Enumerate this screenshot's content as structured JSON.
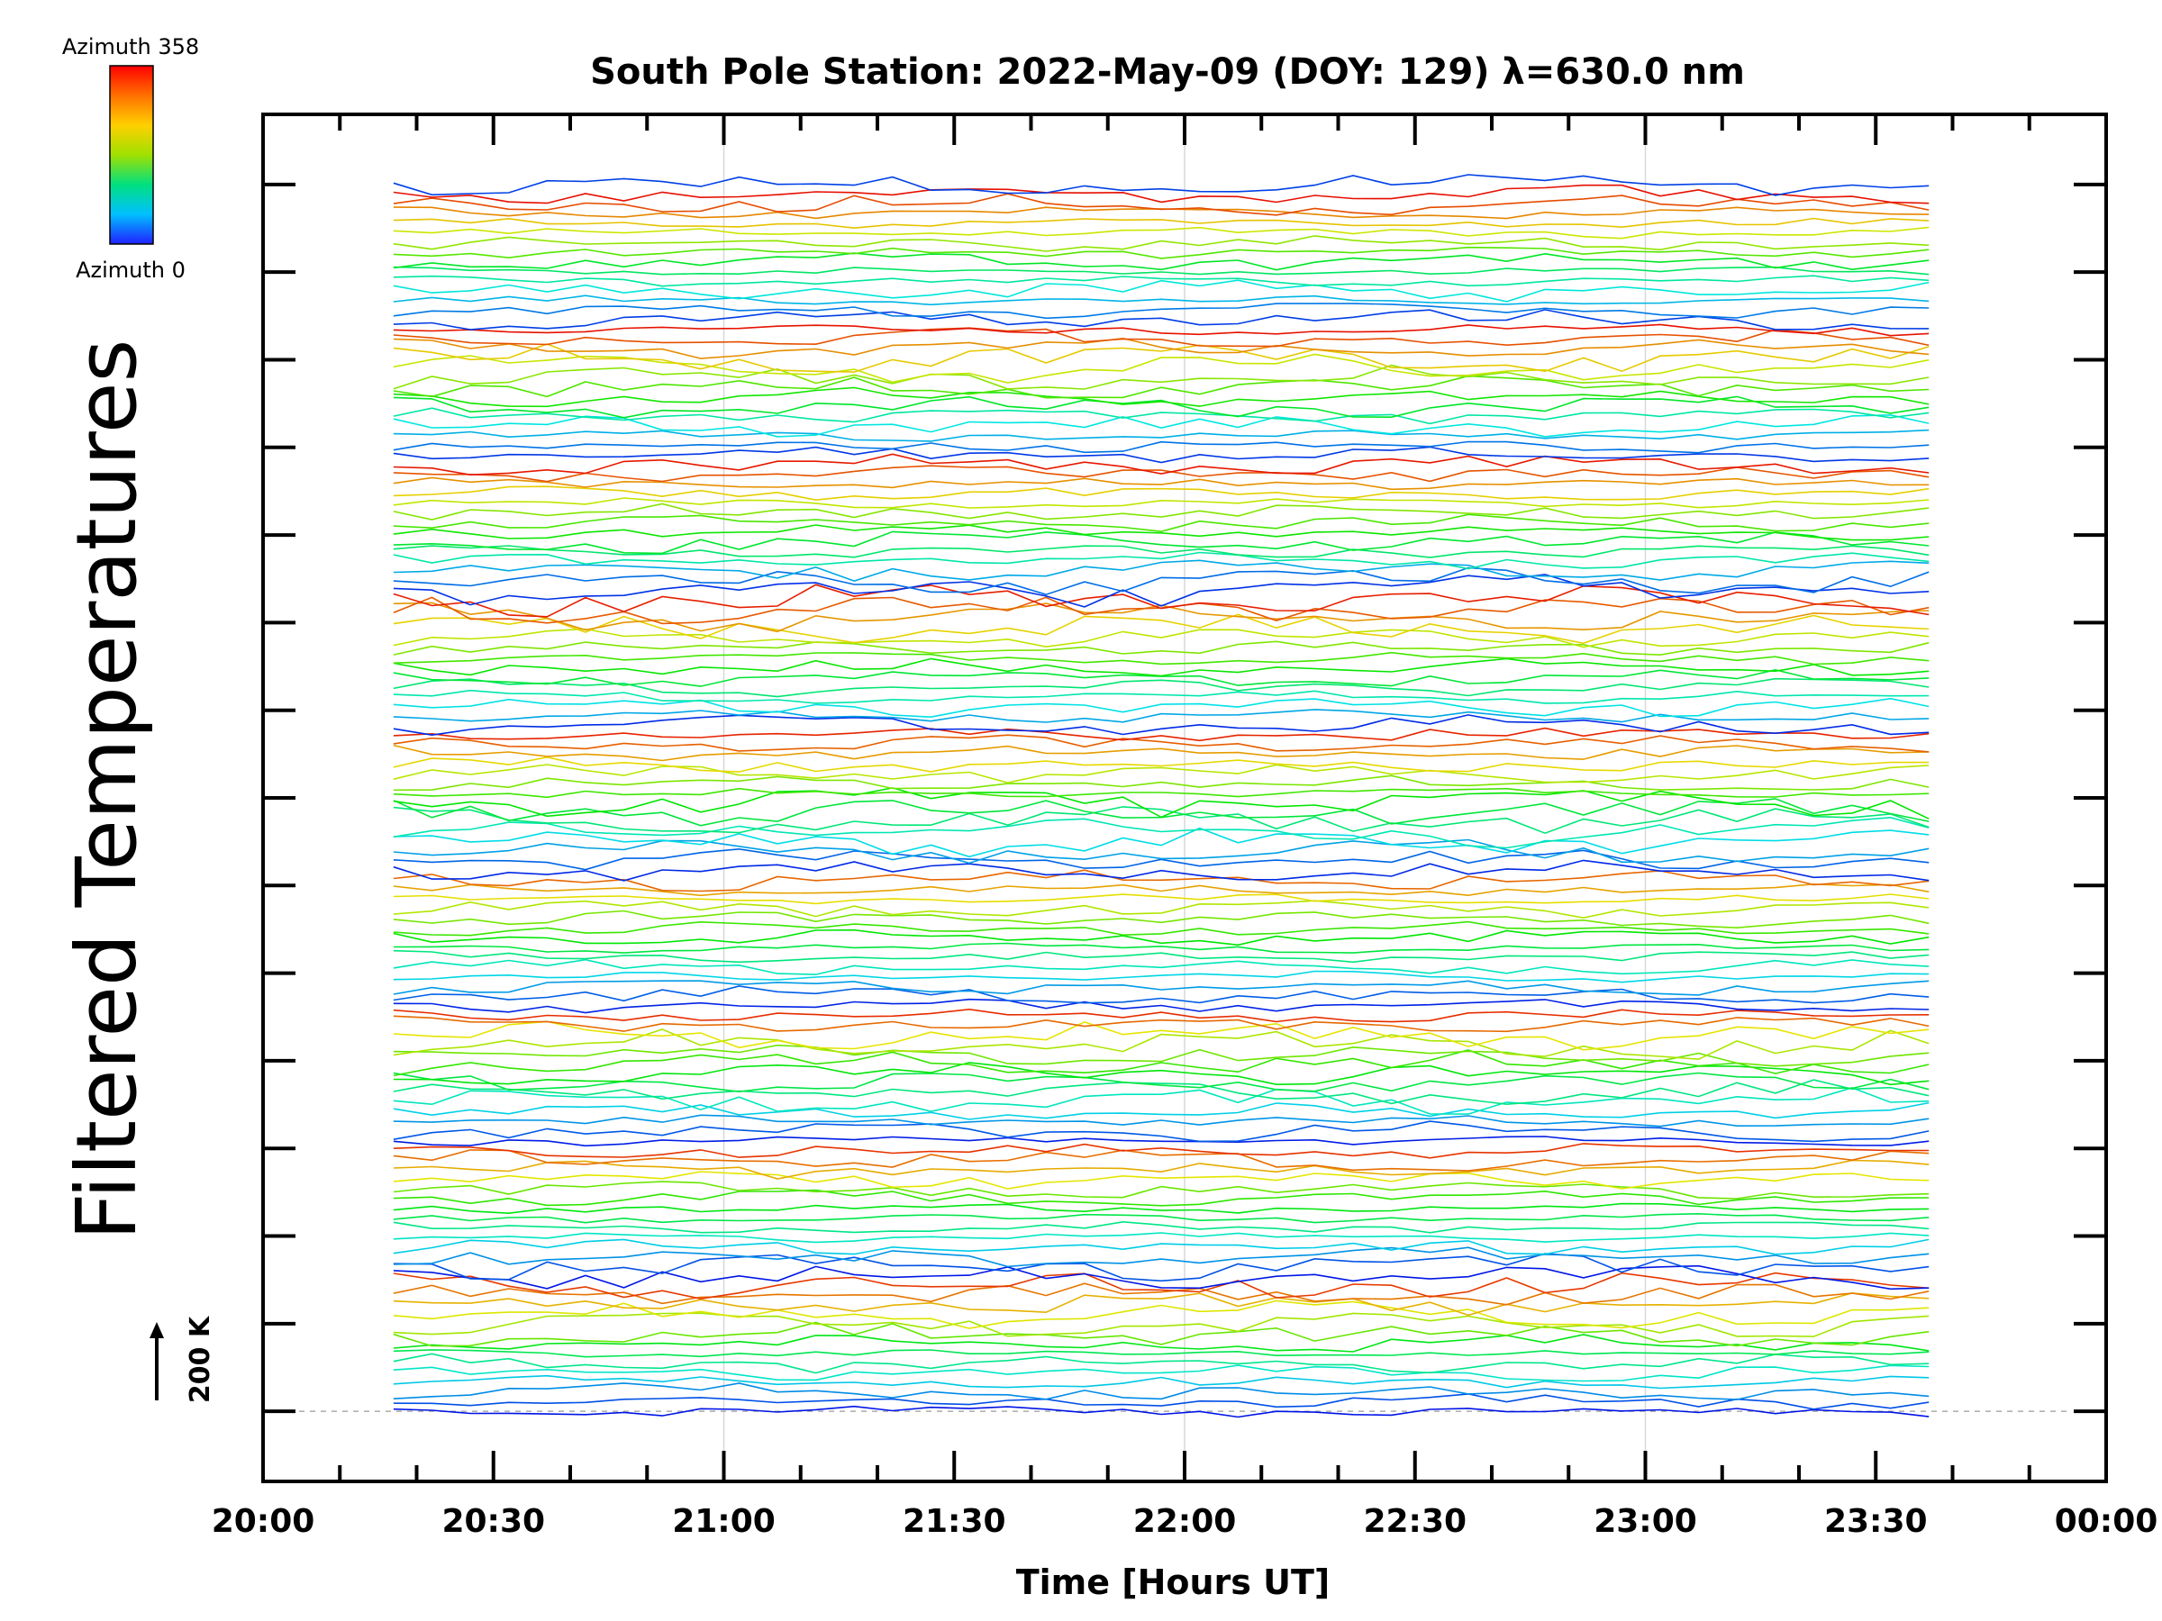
{
  "chart_data": {
    "type": "line",
    "title": "South Pole Station: 2022-May-09 (DOY: 129) λ=630.0 nm",
    "xlabel": "Time [Hours UT]",
    "ylabel": "Filtered Temperatures",
    "x_ticks": [
      "20:00",
      "20:30",
      "21:00",
      "21:30",
      "22:00",
      "22:30",
      "23:00",
      "23:30",
      "00:00"
    ],
    "x_range_hours": [
      20.0,
      24.0
    ],
    "data_time_range_hours": [
      20.2833,
      23.6167
    ],
    "sample_interval_hours": 0.0833,
    "series_count": 128,
    "traces_per_zenith_ring": 8,
    "series_offset_K": 55,
    "y_gridlines": [
      0,
      1,
      2,
      3,
      4,
      5,
      6,
      7,
      8,
      9,
      10,
      11,
      12,
      13,
      14
    ],
    "y_range_offsets": [
      -0.8,
      14.8
    ],
    "colorbar": {
      "top_label": "Azimuth  358",
      "bottom_label": "Azimuth  0",
      "min": 0,
      "max": 358,
      "colors": [
        "#2020ff",
        "#00c0ff",
        "#00e080",
        "#a0e000",
        "#ffd000",
        "#ff7000",
        "#ff0000"
      ]
    },
    "scale_bar": {
      "label": "200 K",
      "value_K": 200
    },
    "grid": true
  }
}
